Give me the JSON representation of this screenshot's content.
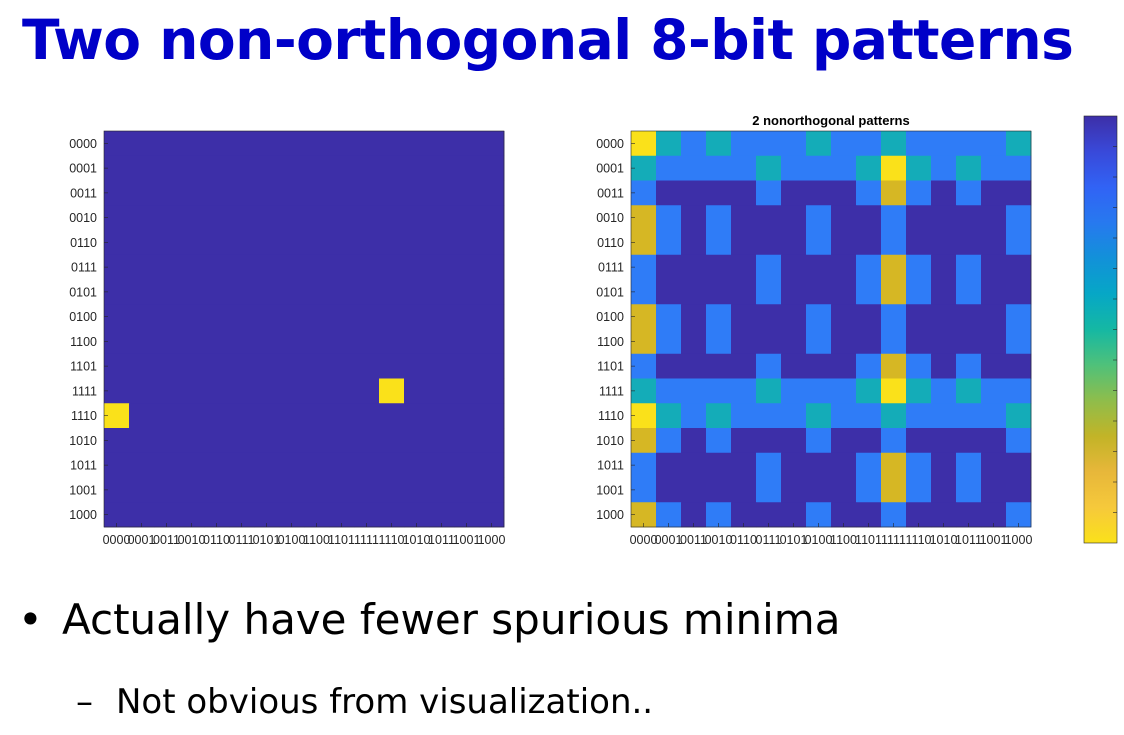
{
  "slide": {
    "title": "Two non-orthogonal 8-bit patterns",
    "bullets": [
      {
        "marker": "•",
        "text": "Actually have fewer spurious minima"
      },
      {
        "marker": "–",
        "text": "Not obvious from visualization.."
      }
    ]
  },
  "chart_data": [
    {
      "type": "heatmap",
      "title": "",
      "row_labels": [
        "0000",
        "0001",
        "0011",
        "0010",
        "0110",
        "0111",
        "0101",
        "0100",
        "1100",
        "1101",
        "1111",
        "1110",
        "1010",
        "1011",
        "1001",
        "1000"
      ],
      "col_labels": [
        "0000",
        "0001",
        "0011",
        "0010",
        "0110",
        "0111",
        "0101",
        "0100",
        "1100",
        "1101",
        "1111",
        "1110",
        "1010",
        "1011",
        "1001",
        "1000"
      ],
      "x_tick_text": "00000001001100100110011101010100110011011111111010101011 10011000",
      "values": [
        [
          0,
          0,
          0,
          0,
          0,
          0,
          0,
          0,
          0,
          0,
          0,
          0,
          0,
          0,
          0,
          0
        ],
        [
          0,
          0,
          0,
          0,
          0,
          0,
          0,
          0,
          0,
          0,
          0,
          0,
          0,
          0,
          0,
          0
        ],
        [
          0,
          0,
          0,
          0,
          0,
          0,
          0,
          0,
          0,
          0,
          0,
          0,
          0,
          0,
          0,
          0
        ],
        [
          0,
          0,
          0,
          0,
          0,
          0,
          0,
          0,
          0,
          0,
          0,
          0,
          0,
          0,
          0,
          0
        ],
        [
          0,
          0,
          0,
          0,
          0,
          0,
          0,
          0,
          0,
          0,
          0,
          0,
          0,
          0,
          0,
          0
        ],
        [
          0,
          0,
          0,
          0,
          0,
          0,
          0,
          0,
          0,
          0,
          0,
          0,
          0,
          0,
          0,
          0
        ],
        [
          0,
          0,
          0,
          0,
          0,
          0,
          0,
          0,
          0,
          0,
          0,
          0,
          0,
          0,
          0,
          0
        ],
        [
          0,
          0,
          0,
          0,
          0,
          0,
          0,
          0,
          0,
          0,
          0,
          0,
          0,
          0,
          0,
          0
        ],
        [
          0,
          0,
          0,
          0,
          0,
          0,
          0,
          0,
          0,
          0,
          0,
          0,
          0,
          0,
          0,
          0
        ],
        [
          0,
          0,
          0,
          0,
          0,
          0,
          0,
          0,
          0,
          0,
          0,
          0,
          0,
          0,
          0,
          0
        ],
        [
          0,
          0,
          0,
          0,
          0,
          0,
          0,
          0,
          0,
          0,
          0,
          1,
          0,
          0,
          0,
          0
        ],
        [
          1,
          0,
          0,
          0,
          0,
          0,
          0,
          0,
          0,
          0,
          0,
          0,
          0,
          0,
          0,
          0
        ],
        [
          0,
          0,
          0,
          0,
          0,
          0,
          0,
          0,
          0,
          0,
          0,
          0,
          0,
          0,
          0,
          0
        ],
        [
          0,
          0,
          0,
          0,
          0,
          0,
          0,
          0,
          0,
          0,
          0,
          0,
          0,
          0,
          0,
          0
        ],
        [
          0,
          0,
          0,
          0,
          0,
          0,
          0,
          0,
          0,
          0,
          0,
          0,
          0,
          0,
          0,
          0
        ],
        [
          0,
          0,
          0,
          0,
          0,
          0,
          0,
          0,
          0,
          0,
          0,
          0,
          0,
          0,
          0,
          0
        ]
      ],
      "colormap": "parula"
    },
    {
      "type": "heatmap",
      "title": "2 nonorthogonal patterns",
      "row_labels": [
        "0000",
        "0001",
        "0011",
        "0010",
        "0110",
        "0111",
        "0101",
        "0100",
        "1100",
        "1101",
        "1111",
        "1110",
        "1010",
        "1011",
        "1001",
        "1000"
      ],
      "col_labels": [
        "0000",
        "0001",
        "0011",
        "0010",
        "0110",
        "0111",
        "0101",
        "0100",
        "1100",
        "1101",
        "1111",
        "1110",
        "1010",
        "1011",
        "1001",
        "1000"
      ],
      "values": [
        [
          5,
          2,
          1,
          2,
          1,
          1,
          1,
          2,
          1,
          1,
          2,
          1,
          1,
          1,
          1,
          2
        ],
        [
          2,
          1,
          1,
          1,
          1,
          2,
          1,
          1,
          1,
          2,
          5,
          2,
          1,
          2,
          1,
          1
        ],
        [
          1,
          0,
          0,
          0,
          0,
          1,
          0,
          0,
          0,
          1,
          4,
          1,
          0,
          1,
          0,
          0
        ],
        [
          4,
          1,
          0,
          1,
          0,
          0,
          0,
          1,
          0,
          0,
          1,
          0,
          0,
          0,
          0,
          1
        ],
        [
          4,
          1,
          0,
          1,
          0,
          0,
          0,
          1,
          0,
          0,
          1,
          0,
          0,
          0,
          0,
          1
        ],
        [
          1,
          0,
          0,
          0,
          0,
          1,
          0,
          0,
          0,
          1,
          4,
          1,
          0,
          1,
          0,
          0
        ],
        [
          1,
          0,
          0,
          0,
          0,
          1,
          0,
          0,
          0,
          1,
          4,
          1,
          0,
          1,
          0,
          0
        ],
        [
          4,
          1,
          0,
          1,
          0,
          0,
          0,
          1,
          0,
          0,
          1,
          0,
          0,
          0,
          0,
          1
        ],
        [
          4,
          1,
          0,
          1,
          0,
          0,
          0,
          1,
          0,
          0,
          1,
          0,
          0,
          0,
          0,
          1
        ],
        [
          1,
          0,
          0,
          0,
          0,
          1,
          0,
          0,
          0,
          1,
          4,
          1,
          0,
          1,
          0,
          0
        ],
        [
          2,
          1,
          1,
          1,
          1,
          2,
          1,
          1,
          1,
          2,
          5,
          2,
          1,
          2,
          1,
          1
        ],
        [
          5,
          2,
          1,
          2,
          1,
          1,
          1,
          2,
          1,
          1,
          2,
          1,
          1,
          1,
          1,
          2
        ],
        [
          4,
          1,
          0,
          1,
          0,
          0,
          0,
          1,
          0,
          0,
          1,
          0,
          0,
          0,
          0,
          1
        ],
        [
          1,
          0,
          0,
          0,
          0,
          1,
          0,
          0,
          0,
          1,
          4,
          1,
          0,
          1,
          0,
          0
        ],
        [
          1,
          0,
          0,
          0,
          0,
          1,
          0,
          0,
          0,
          1,
          4,
          1,
          0,
          1,
          0,
          0
        ],
        [
          4,
          1,
          0,
          1,
          0,
          0,
          0,
          1,
          0,
          0,
          1,
          0,
          0,
          0,
          0,
          1
        ]
      ],
      "level_colors": [
        "#3d2fa8",
        "#2f7cf7",
        "#14acb8",
        "#2ab493",
        "#d6b724",
        "#fae11a"
      ]
    }
  ],
  "colorbar": {
    "colors": [
      "#fae11a",
      "#f6c93b",
      "#e7b73a",
      "#c2b427",
      "#8fbd4b",
      "#4fc17a",
      "#15b8a3",
      "#06a7c6",
      "#1291d9",
      "#2779ef",
      "#3163f5",
      "#3949d9",
      "#3d2fa8"
    ]
  },
  "colors": {
    "title": "#0000c8",
    "low": "#3d2fa8",
    "high": "#fae11a"
  }
}
